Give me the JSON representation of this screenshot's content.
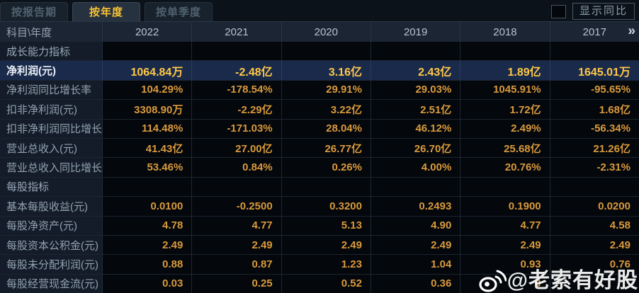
{
  "tabs": [
    {
      "label": "按报告期",
      "active": false
    },
    {
      "label": "按年度",
      "active": true
    },
    {
      "label": "按单季度",
      "active": false
    }
  ],
  "controls": {
    "show_yoy_label": "显示同比",
    "checkbox_checked": false
  },
  "table": {
    "corner_label": "科目\\年度",
    "years": [
      "2022",
      "2021",
      "2020",
      "2019",
      "2018",
      "2017"
    ],
    "more_icon": "»",
    "rows": [
      {
        "label": "成长能力指标",
        "type": "section",
        "values": [
          "",
          "",
          "",
          "",
          "",
          ""
        ]
      },
      {
        "label": "净利润(元)",
        "type": "highlight",
        "values": [
          "1064.84万",
          "-2.48亿",
          "3.16亿",
          "2.43亿",
          "1.89亿",
          "1645.01万"
        ]
      },
      {
        "label": "净利润同比增长率",
        "type": "data",
        "values": [
          "104.29%",
          "-178.54%",
          "29.91%",
          "29.03%",
          "1045.91%",
          "-95.65%"
        ]
      },
      {
        "label": "扣非净利润(元)",
        "type": "data",
        "values": [
          "3308.90万",
          "-2.29亿",
          "3.22亿",
          "2.51亿",
          "1.72亿",
          "1.68亿"
        ]
      },
      {
        "label": "扣非净利润同比增长率",
        "type": "data",
        "values": [
          "114.48%",
          "-171.03%",
          "28.04%",
          "46.12%",
          "2.49%",
          "-56.34%"
        ]
      },
      {
        "label": "营业总收入(元)",
        "type": "data",
        "values": [
          "41.43亿",
          "27.00亿",
          "26.77亿",
          "26.70亿",
          "25.68亿",
          "21.26亿"
        ]
      },
      {
        "label": "营业总收入同比增长率",
        "type": "data",
        "values": [
          "53.46%",
          "0.84%",
          "0.26%",
          "4.00%",
          "20.76%",
          "-2.31%"
        ]
      },
      {
        "label": "每股指标",
        "type": "section",
        "values": [
          "",
          "",
          "",
          "",
          "",
          ""
        ]
      },
      {
        "label": "基本每股收益(元)",
        "type": "data",
        "values": [
          "0.0100",
          "-0.2500",
          "0.3200",
          "0.2493",
          "0.1900",
          "0.0200"
        ]
      },
      {
        "label": "每股净资产(元)",
        "type": "data",
        "values": [
          "4.78",
          "4.77",
          "5.13",
          "4.90",
          "4.77",
          "4.58"
        ]
      },
      {
        "label": "每股资本公积金(元)",
        "type": "data",
        "values": [
          "2.49",
          "2.49",
          "2.49",
          "2.49",
          "2.49",
          "2.49"
        ]
      },
      {
        "label": "每股未分配利润(元)",
        "type": "data",
        "values": [
          "0.88",
          "0.87",
          "1.23",
          "1.04",
          "0.93",
          "0.76"
        ]
      },
      {
        "label": "每股经营现金流(元)",
        "type": "data",
        "values": [
          "0.03",
          "0.25",
          "0.52",
          "0.36",
          "0",
          ""
        ]
      }
    ]
  },
  "watermark": {
    "handle": "@老索有好股"
  },
  "colors": {
    "accent_value": "#d99a3d",
    "highlight_value": "#ffc847",
    "active_tab_text": "#f6c233",
    "highlight_row_bg": "#1a2a4b",
    "header_bg": "#1b2533",
    "label_col_bg": "#131c28"
  }
}
